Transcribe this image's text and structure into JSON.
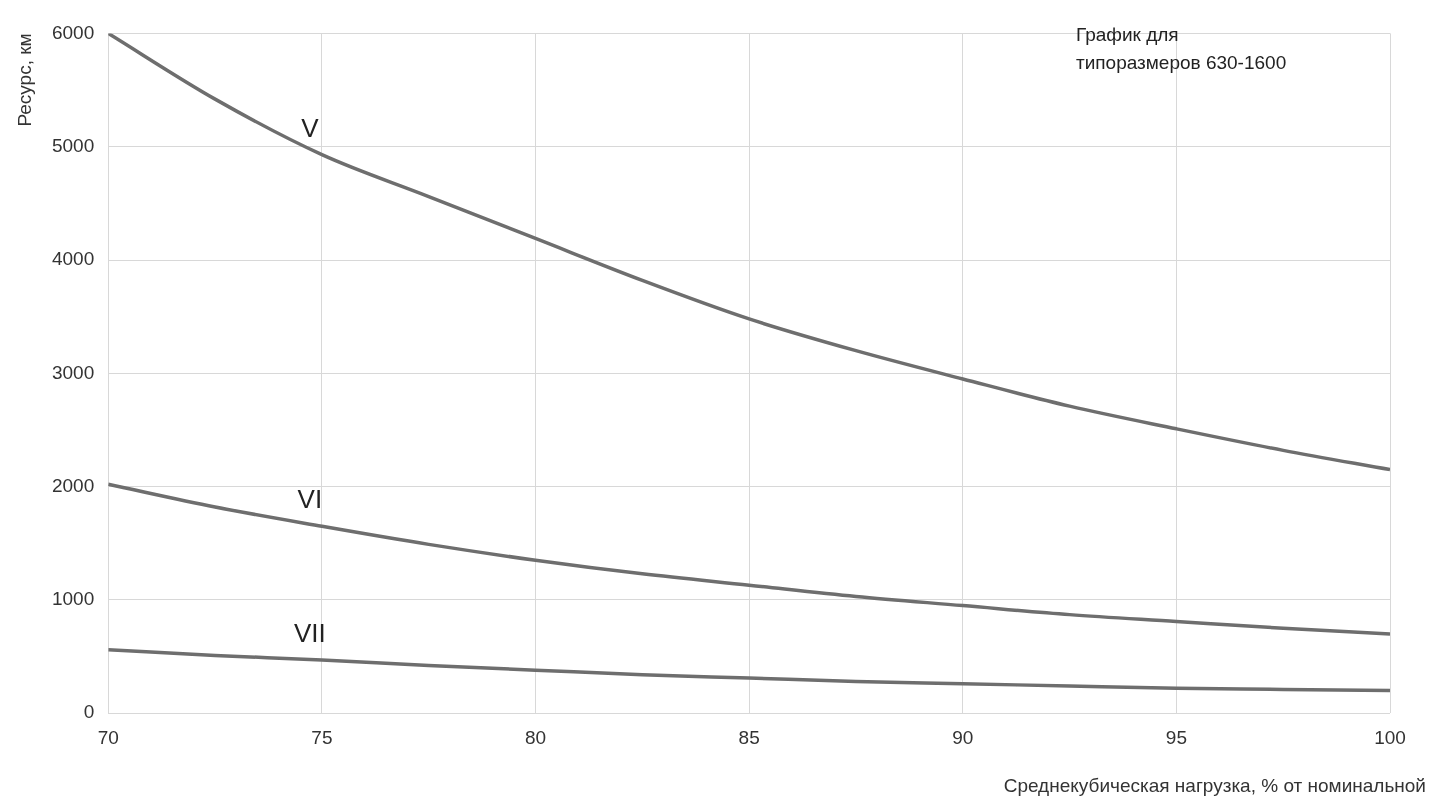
{
  "chart_data": {
    "type": "line",
    "xlabel": "Среднекубическая нагрузка, % от номинальной",
    "ylabel": "Ресурс, км",
    "annotations": [
      "График для\nтипоразмеров 630-1600"
    ],
    "x": [
      70,
      72.5,
      75,
      77.5,
      80,
      82.5,
      85,
      87.5,
      90,
      92.5,
      95,
      97.5,
      100
    ],
    "series": [
      {
        "name": "V",
        "color": "#6e6e6e",
        "values": [
          6000,
          5420,
          4930,
          4560,
          4190,
          3820,
          3480,
          3200,
          2950,
          2710,
          2510,
          2320,
          2150
        ]
      },
      {
        "name": "VI",
        "color": "#6e6e6e",
        "values": [
          2020,
          1820,
          1650,
          1490,
          1350,
          1230,
          1130,
          1030,
          950,
          870,
          810,
          750,
          700
        ]
      },
      {
        "name": "VII",
        "color": "#6e6e6e",
        "values": [
          560,
          510,
          470,
          420,
          380,
          340,
          310,
          280,
          260,
          240,
          220,
          210,
          200
        ]
      }
    ],
    "xlim": [
      70,
      100
    ],
    "ylim": [
      0,
      6000
    ],
    "xticks": [
      70,
      75,
      80,
      85,
      90,
      95,
      100
    ],
    "yticks": [
      0,
      1000,
      2000,
      3000,
      4000,
      5000,
      6000
    ],
    "grid": true,
    "marker": "none",
    "line_style": "solid",
    "legend": false
  }
}
